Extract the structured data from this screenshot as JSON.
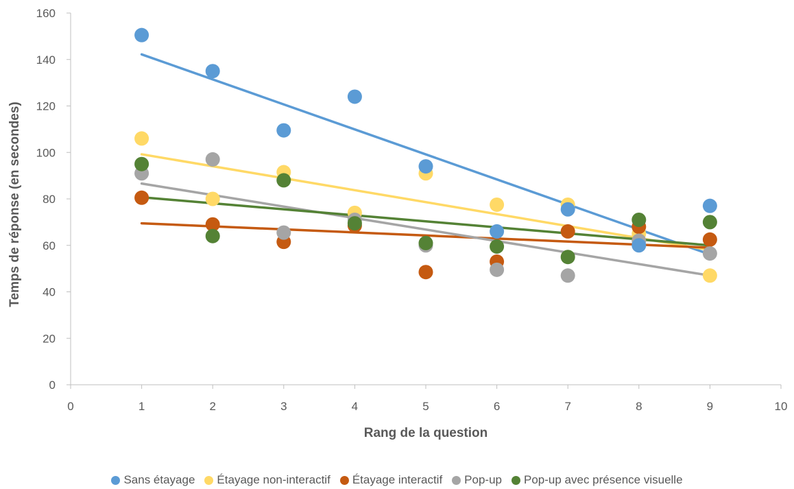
{
  "chart_data": {
    "type": "scatter",
    "title": "",
    "xlabel": "Rang de la question",
    "ylabel": "Temps de réponse (en secondes)",
    "xlim": [
      0,
      10
    ],
    "ylim": [
      0,
      160
    ],
    "xticks": [
      "0",
      "1",
      "2",
      "3",
      "4",
      "5",
      "6",
      "7",
      "8",
      "9",
      "10"
    ],
    "yticks": [
      "0",
      "20",
      "40",
      "60",
      "80",
      "100",
      "120",
      "140",
      "160"
    ],
    "grid": false,
    "legend_position": "bottom",
    "trendline": "linear",
    "x": [
      1,
      2,
      3,
      4,
      5,
      6,
      7,
      8,
      9
    ],
    "series": [
      {
        "name": "Sans étayage",
        "color": "#5B9BD5",
        "values": [
          150.5,
          135,
          109.5,
          124,
          94,
          66,
          75.5,
          60,
          77
        ],
        "trend": [
          142.2,
          56.1
        ]
      },
      {
        "name": "Étayage non-interactif",
        "color": "#FFD966",
        "values": [
          106,
          80,
          91.5,
          74,
          91,
          77.5,
          77.5,
          65,
          47
        ],
        "trend": [
          99.2,
          58.0
        ]
      },
      {
        "name": "Étayage interactif",
        "color": "#C55A11",
        "values": [
          80.5,
          69,
          61.5,
          68.5,
          48.5,
          53,
          66,
          68,
          62.5
        ],
        "trend": [
          69.5,
          59.0
        ]
      },
      {
        "name": "Pop-up",
        "color": "#A5A5A5",
        "values": [
          91,
          97,
          65.5,
          71,
          60,
          49.5,
          47,
          62,
          56.5
        ],
        "trend": [
          86.6,
          47.0
        ]
      },
      {
        "name": "Pop-up avec présence visuelle",
        "color": "#548235",
        "values": [
          95,
          64,
          88,
          69.5,
          61,
          59.5,
          55,
          71,
          70
        ],
        "trend": [
          80.7,
          60.0
        ]
      }
    ]
  }
}
